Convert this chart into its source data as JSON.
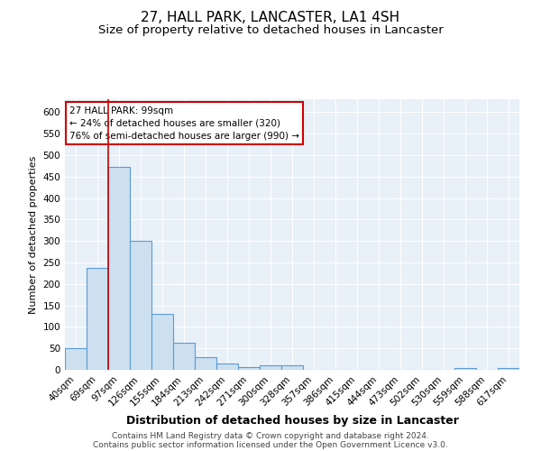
{
  "title": "27, HALL PARK, LANCASTER, LA1 4SH",
  "subtitle": "Size of property relative to detached houses in Lancaster",
  "xlabel": "Distribution of detached houses by size in Lancaster",
  "ylabel": "Number of detached properties",
  "categories": [
    "40sqm",
    "69sqm",
    "97sqm",
    "126sqm",
    "155sqm",
    "184sqm",
    "213sqm",
    "242sqm",
    "271sqm",
    "300sqm",
    "328sqm",
    "357sqm",
    "386sqm",
    "415sqm",
    "444sqm",
    "473sqm",
    "502sqm",
    "530sqm",
    "559sqm",
    "588sqm",
    "617sqm"
  ],
  "values": [
    50,
    238,
    472,
    300,
    130,
    62,
    30,
    15,
    7,
    10,
    10,
    0,
    0,
    0,
    0,
    0,
    0,
    0,
    5,
    0,
    5
  ],
  "bar_color": "#cce0f0",
  "bar_edge_color": "#5b9bd5",
  "highlight_index": 2,
  "highlight_line_color": "#cc0000",
  "annotation_line1": "27 HALL PARK: 99sqm",
  "annotation_line2": "← 24% of detached houses are smaller (320)",
  "annotation_line3": "76% of semi-detached houses are larger (990) →",
  "annotation_box_color": "#ffffff",
  "annotation_box_edge_color": "#cc0000",
  "ylim": [
    0,
    630
  ],
  "yticks": [
    0,
    50,
    100,
    150,
    200,
    250,
    300,
    350,
    400,
    450,
    500,
    550,
    600
  ],
  "background_color": "#e8f0f8",
  "grid_color": "#ffffff",
  "footer_line1": "Contains HM Land Registry data © Crown copyright and database right 2024.",
  "footer_line2": "Contains public sector information licensed under the Open Government Licence v3.0.",
  "title_fontsize": 11,
  "subtitle_fontsize": 9.5,
  "xlabel_fontsize": 9,
  "ylabel_fontsize": 8,
  "tick_fontsize": 7.5,
  "footer_fontsize": 6.5
}
